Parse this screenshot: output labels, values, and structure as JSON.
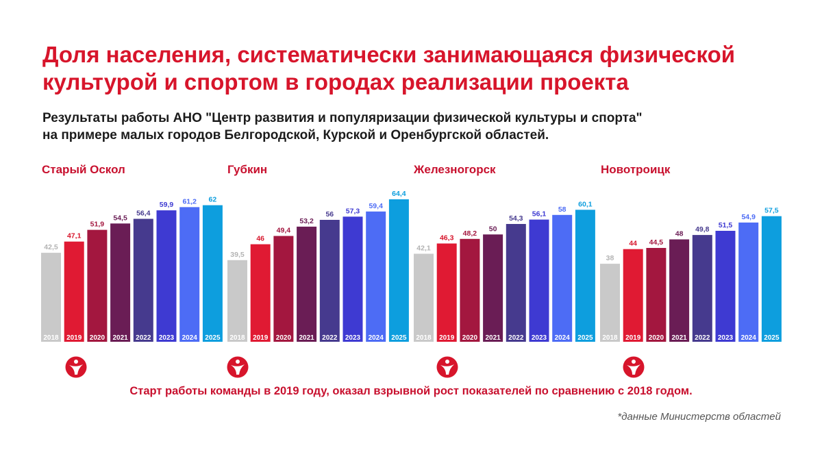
{
  "title_lines": [
    "Доля населения,  систематически занимающаяся физической",
    "культурой и спортом в городах реализации проекта"
  ],
  "subtitle_lines": [
    "Результаты работы АНО \"Центр развития и популяризации физической культуры и спорта\"",
    "на примере малых городов Белгородской, Курской и Оренбургской областей."
  ],
  "chart_data": [
    {
      "type": "bar",
      "title": "Старый Оскол",
      "categories": [
        "2018",
        "2019",
        "2020",
        "2021",
        "2022",
        "2023",
        "2024",
        "2025"
      ],
      "values": [
        42.5,
        47.1,
        51.9,
        54.5,
        56.4,
        59.9,
        61.2,
        62
      ],
      "value_labels": [
        "42,5",
        "47,1",
        "51,9",
        "54,5",
        "56,4",
        "59,9",
        "61,2",
        "62"
      ],
      "xlabel": "",
      "ylabel": ""
    },
    {
      "type": "bar",
      "title": "Губкин",
      "categories": [
        "2018",
        "2019",
        "2020",
        "2021",
        "2022",
        "2023",
        "2024",
        "2025"
      ],
      "values": [
        39.5,
        46,
        49.4,
        53.2,
        56,
        57.3,
        59.4,
        64.4
      ],
      "value_labels": [
        "39,5",
        "46",
        "49,4",
        "53,2",
        "56",
        "57,3",
        "59,4",
        "64,4"
      ],
      "xlabel": "",
      "ylabel": ""
    },
    {
      "type": "bar",
      "title": "Железногорск",
      "categories": [
        "2018",
        "2019",
        "2020",
        "2021",
        "2022",
        "2023",
        "2024",
        "2025"
      ],
      "values": [
        42.1,
        46.3,
        48.2,
        50,
        54.3,
        56.1,
        58,
        60.1
      ],
      "value_labels": [
        "42,1",
        "46,3",
        "48,2",
        "50",
        "54,3",
        "56,1",
        "58",
        "60,1"
      ],
      "xlabel": "",
      "ylabel": ""
    },
    {
      "type": "bar",
      "title": "Новотроицк",
      "categories": [
        "2018",
        "2019",
        "2020",
        "2021",
        "2022",
        "2023",
        "2024",
        "2025"
      ],
      "values": [
        38,
        44,
        44.5,
        48,
        49.8,
        51.5,
        54.9,
        57.5
      ],
      "value_labels": [
        "38",
        "44",
        "44,5",
        "48",
        "49,8",
        "51,5",
        "54,9",
        "57,5"
      ],
      "xlabel": "",
      "ylabel": ""
    }
  ],
  "bar_colors": [
    "#c9c9c9",
    "#e01a33",
    "#a3173f",
    "#6a1d55",
    "#463a8e",
    "#3e3ad2",
    "#4d6cf5",
    "#0d9ede"
  ],
  "label_colors": [
    "#b3b3b3",
    "#d7152b",
    "#a3173f",
    "#6a1d55",
    "#463a8e",
    "#3e3ad2",
    "#4d6cf5",
    "#0d9ede"
  ],
  "logo_color": "#d7152b",
  "logo_icon": "running-person-logo",
  "note": "Старт работы команды в 2019 году, оказал взрывной рост показателей по сравнению с 2018 годом.",
  "source": "*данные Министерств областей"
}
